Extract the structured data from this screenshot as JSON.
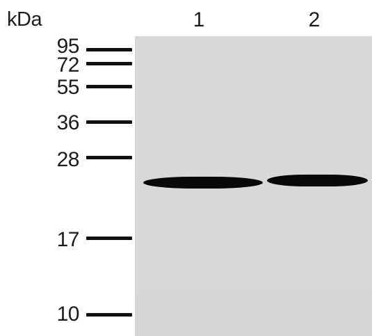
{
  "axis": {
    "unit_label": "kDa"
  },
  "lanes": [
    "1",
    "2"
  ],
  "markers": [
    {
      "label": "95"
    },
    {
      "label": "72"
    },
    {
      "label": "55"
    },
    {
      "label": "36"
    },
    {
      "label": "28"
    },
    {
      "label": "17"
    },
    {
      "label": "10"
    }
  ],
  "colors": {
    "membrane": "#d8d8d8",
    "band": "#080808",
    "ink": "#1c1c1c"
  }
}
